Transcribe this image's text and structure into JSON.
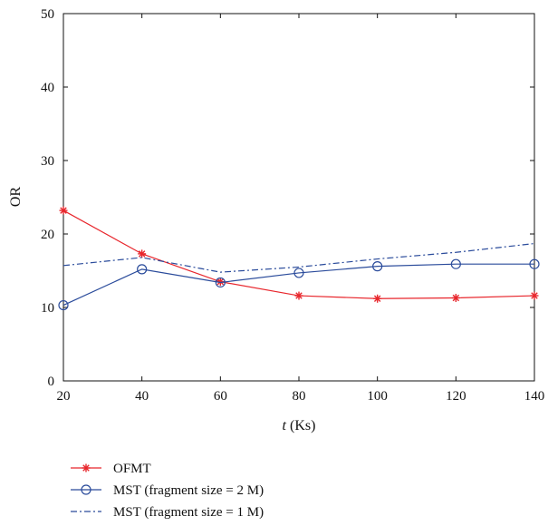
{
  "chart_data": {
    "type": "line",
    "title": "",
    "xlabel_var": "t",
    "xlabel_unit": " (Ks)",
    "ylabel": "OR",
    "x": [
      20,
      40,
      60,
      80,
      100,
      120,
      140
    ],
    "xlim": [
      20,
      140
    ],
    "ylim": [
      0,
      50
    ],
    "xticks": [
      "20",
      "40",
      "60",
      "80",
      "100",
      "120",
      "140"
    ],
    "yticks": [
      "0",
      "10",
      "20",
      "30",
      "40",
      "50"
    ],
    "grid": false,
    "legend_position": "below",
    "series": [
      {
        "name": "OFMT",
        "values": [
          23.2,
          17.3,
          13.5,
          11.6,
          11.2,
          11.3,
          11.6
        ],
        "color": "#e8262c",
        "marker": "star",
        "line": "solid"
      },
      {
        "name": "MST (fragment size = 2 M)",
        "values": [
          10.3,
          15.2,
          13.4,
          14.7,
          15.6,
          15.9,
          15.9
        ],
        "color": "#2a4b9b",
        "marker": "circle",
        "line": "solid"
      },
      {
        "name": "MST (fragment size = 1 M)",
        "values": [
          15.7,
          16.8,
          14.8,
          15.5,
          16.6,
          17.5,
          18.7
        ],
        "color": "#2a4b9b",
        "marker": "none",
        "line": "dashdot"
      }
    ]
  }
}
